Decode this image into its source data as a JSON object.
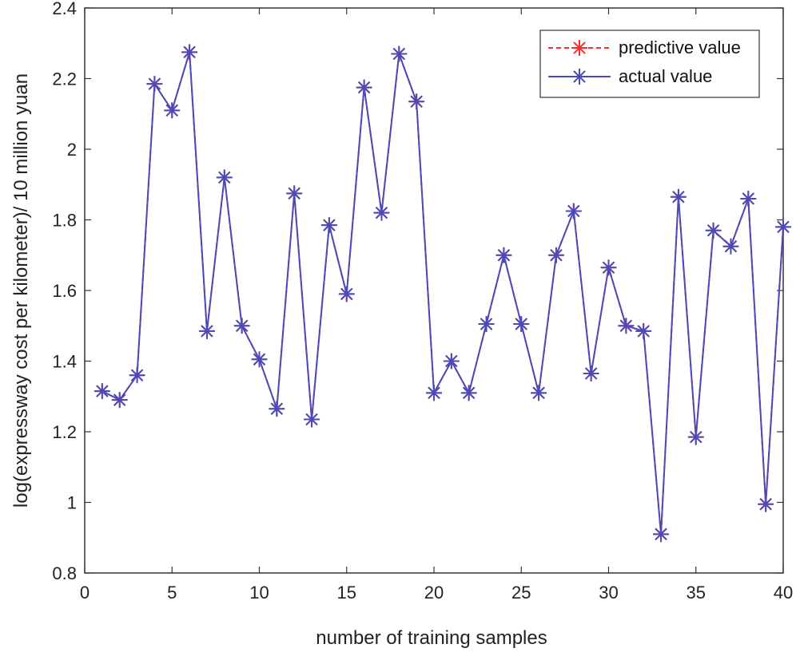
{
  "chart_data": {
    "type": "line",
    "title": "",
    "xlabel": "number of training samples",
    "ylabel": "log(expressway cost per kilometer)/ 10 million yuan",
    "xlim": [
      0,
      40
    ],
    "ylim": [
      0.8,
      2.4
    ],
    "xticks": [
      0,
      5,
      10,
      15,
      20,
      25,
      30,
      35,
      40
    ],
    "xtick_labels": [
      "0",
      "5",
      "10",
      "15",
      "20",
      "25",
      "30",
      "35",
      "40"
    ],
    "yticks": [
      0.8,
      1.0,
      1.2,
      1.4,
      1.6,
      1.8,
      2.0,
      2.2,
      2.4
    ],
    "ytick_labels": [
      "0.8",
      "1",
      "1.2",
      "1.4",
      "1.6",
      "1.8",
      "2",
      "2.2",
      "2.4"
    ],
    "grid": false,
    "legend_position": "top-right",
    "x": [
      1,
      2,
      3,
      4,
      5,
      6,
      7,
      8,
      9,
      10,
      11,
      12,
      13,
      14,
      15,
      16,
      17,
      18,
      19,
      20,
      21,
      22,
      23,
      24,
      25,
      26,
      27,
      28,
      29,
      30,
      31,
      32,
      33,
      34,
      35,
      36,
      37,
      38,
      39,
      40
    ],
    "series": [
      {
        "name": "predictive value",
        "color": "#ff2a2a",
        "marker": "asterisk",
        "line_style": "dashed",
        "values": [
          1.315,
          1.29,
          1.36,
          2.185,
          2.11,
          2.275,
          1.485,
          1.92,
          1.5,
          1.405,
          1.265,
          1.875,
          1.235,
          1.785,
          1.59,
          2.175,
          1.82,
          2.27,
          2.135,
          1.31,
          1.4,
          1.31,
          1.505,
          1.7,
          1.505,
          1.31,
          1.7,
          1.825,
          1.365,
          1.665,
          1.5,
          1.485,
          0.91,
          1.865,
          1.185,
          1.77,
          1.725,
          1.86,
          0.995,
          1.78
        ]
      },
      {
        "name": "actual value",
        "color": "#4a4ab8",
        "marker": "asterisk",
        "line_style": "solid",
        "values": [
          1.315,
          1.29,
          1.36,
          2.185,
          2.11,
          2.275,
          1.485,
          1.92,
          1.5,
          1.405,
          1.265,
          1.875,
          1.235,
          1.785,
          1.59,
          2.175,
          1.82,
          2.27,
          2.135,
          1.31,
          1.4,
          1.31,
          1.505,
          1.7,
          1.505,
          1.31,
          1.7,
          1.825,
          1.365,
          1.665,
          1.5,
          1.485,
          0.91,
          1.865,
          1.185,
          1.77,
          1.725,
          1.86,
          0.995,
          1.78
        ]
      }
    ]
  }
}
